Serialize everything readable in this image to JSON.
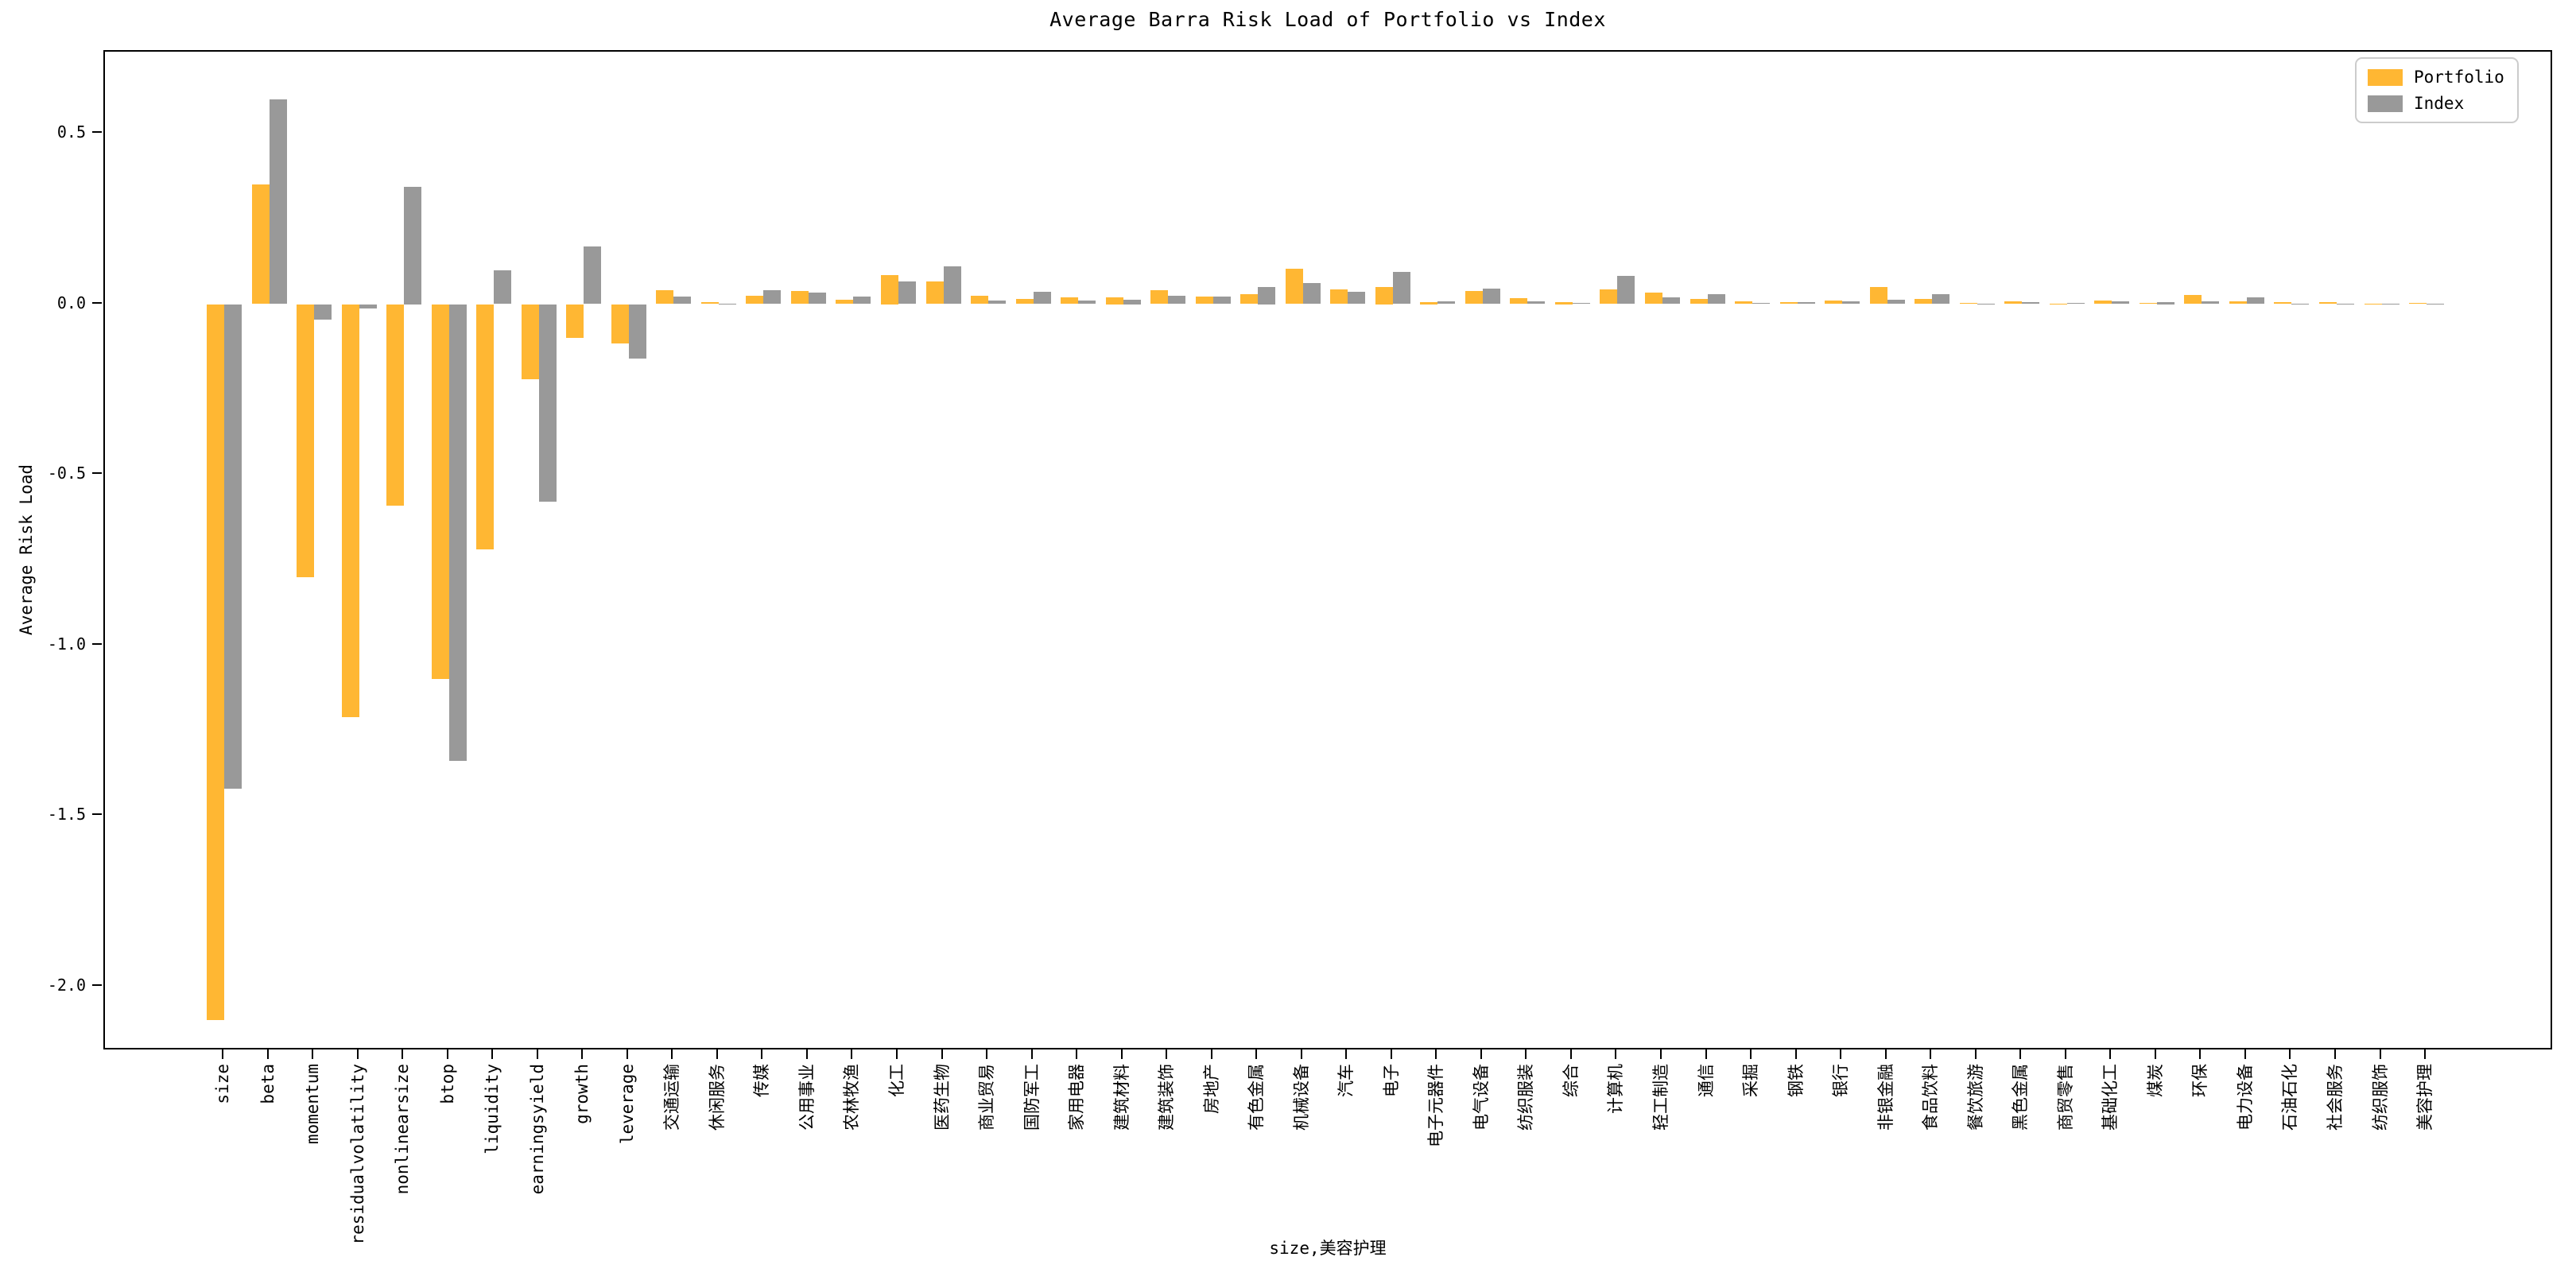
{
  "title": "Average Barra Risk Load of Portfolio vs Index",
  "axes": {
    "ylabel": "Average Risk Load",
    "xlabel": "size,美容护理"
  },
  "legend": {
    "position": "upper right",
    "items": [
      {
        "label": "Portfolio",
        "color": "#FFB733"
      },
      {
        "label": "Index",
        "color": "#999999"
      }
    ]
  },
  "colors": {
    "portfolio": "#FFB733",
    "index": "#999999",
    "spine": "#000000",
    "legend_border": "#cccccc"
  },
  "chart_data": {
    "type": "bar",
    "title": "Average Barra Risk Load of Portfolio vs Index",
    "xlabel": "size,美容护理",
    "ylabel": "Average Risk Load",
    "grid": false,
    "legend_position": "upper right",
    "ylim": [
      -2.19,
      0.74
    ],
    "yticks": [
      0.5,
      0.0,
      -0.5,
      -1.0,
      -1.5,
      -2.0
    ],
    "ytick_labels": [
      "0.5",
      "0.0",
      "-0.5",
      "-1.0",
      "-1.5",
      "-2.0"
    ],
    "categories": [
      "size",
      "beta",
      "momentum",
      "residualvolatility",
      "nonlinearsize",
      "btop",
      "liquidity",
      "earningsyield",
      "growth",
      "leverage",
      "交通运输",
      "休闲服务",
      "传媒",
      "公用事业",
      "农林牧渔",
      "化工",
      "医药生物",
      "商业贸易",
      "国防军工",
      "家用电器",
      "建筑材料",
      "建筑装饰",
      "房地产",
      "有色金属",
      "机械设备",
      "汽车",
      "电子",
      "电子元器件",
      "电气设备",
      "纺织服装",
      "综合",
      "计算机",
      "轻工制造",
      "通信",
      "采掘",
      "钢铁",
      "银行",
      "非银金融",
      "食品饮料",
      "餐饮旅游",
      "黑色金属",
      "商贸零售",
      "基础化工",
      "煤炭",
      "环保",
      "电力设备",
      "石油石化",
      "社会服务",
      "纺织服饰",
      "美容护理"
    ],
    "series": [
      {
        "name": "Portfolio",
        "color": "#FFB733",
        "values": [
          -2.1,
          0.35,
          -0.8,
          -1.21,
          -0.59,
          -1.1,
          -0.72,
          -0.22,
          -0.1,
          -0.115,
          0.04,
          0.006,
          0.025,
          0.038,
          0.012,
          0.085,
          0.067,
          0.024,
          0.015,
          0.019,
          0.021,
          0.041,
          0.023,
          0.029,
          0.103,
          0.042,
          0.05,
          0.007,
          0.038,
          0.018,
          0.007,
          0.042,
          0.033,
          0.016,
          0.009,
          0.006,
          0.011,
          0.049,
          0.016,
          0.003,
          0.009,
          0.002,
          0.011,
          0.003,
          0.026,
          0.008,
          0.005,
          0.005,
          0.002,
          0.004
        ]
      },
      {
        "name": "Index",
        "color": "#999999",
        "values": [
          -1.42,
          0.6,
          -0.045,
          -0.012,
          0.345,
          -1.34,
          0.098,
          -0.58,
          0.17,
          -0.16,
          0.023,
          0.002,
          0.04,
          0.034,
          0.022,
          0.067,
          0.11,
          0.011,
          0.036,
          0.011,
          0.014,
          0.024,
          0.022,
          0.05,
          0.061,
          0.036,
          0.094,
          0.009,
          0.046,
          0.009,
          0.003,
          0.083,
          0.02,
          0.03,
          0.003,
          0.005,
          0.008,
          0.013,
          0.029,
          0.001,
          0.005,
          0.003,
          0.008,
          0.007,
          0.009,
          0.019,
          0.002,
          0.001,
          0.001,
          0.001
        ]
      }
    ]
  }
}
